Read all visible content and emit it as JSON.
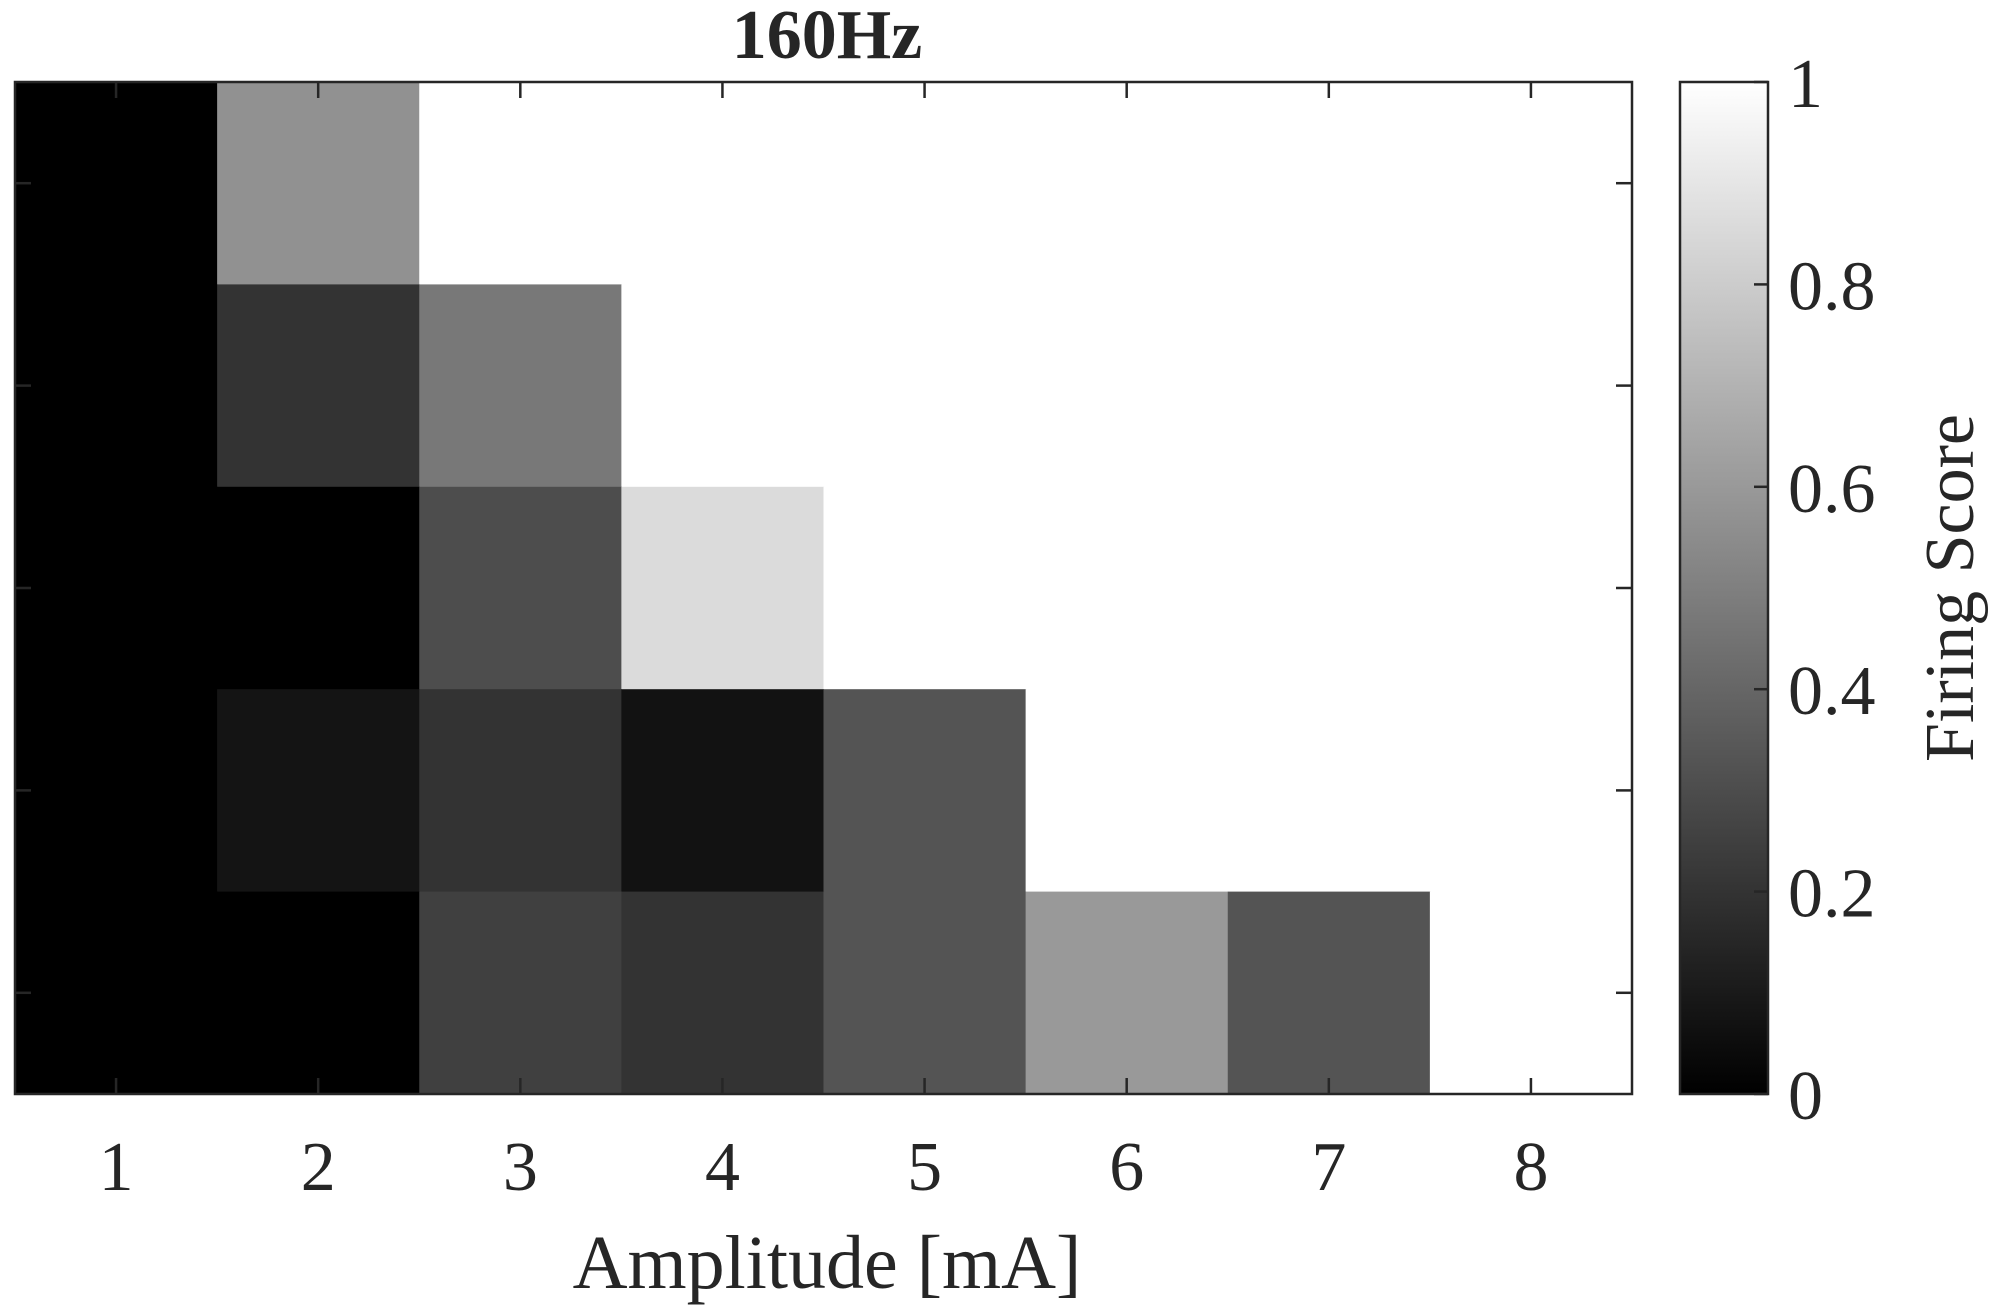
{
  "chart_data": {
    "type": "heatmap",
    "title": "160Hz",
    "xlabel": "Amplitude [mA]",
    "ylabel": "",
    "x_categories": [
      1,
      2,
      3,
      4,
      5,
      6,
      7,
      8
    ],
    "rows_top_to_bottom": [
      [
        0,
        0.57,
        1,
        1,
        1,
        1,
        1,
        1
      ],
      [
        0,
        0.2,
        0.47,
        1,
        1,
        1,
        1,
        1
      ],
      [
        0,
        0,
        0.3,
        0.86,
        1,
        1,
        1,
        1
      ],
      [
        0,
        0.08,
        0.2,
        0.07,
        0.33,
        1,
        1,
        1
      ],
      [
        0,
        0,
        0.25,
        0.2,
        0.33,
        0.6,
        0.33,
        1
      ]
    ],
    "colorbar": {
      "label": "Firing Score",
      "range": [
        0,
        1
      ],
      "ticks": [
        0,
        0.2,
        0.4,
        0.6,
        0.8,
        1
      ],
      "tick_labels": [
        "0",
        "0.2",
        "0.4",
        "0.6",
        "0.8",
        "1"
      ],
      "colormap": "gray",
      "color_low": "#000000",
      "color_high": "#ffffff"
    },
    "grid": false
  }
}
